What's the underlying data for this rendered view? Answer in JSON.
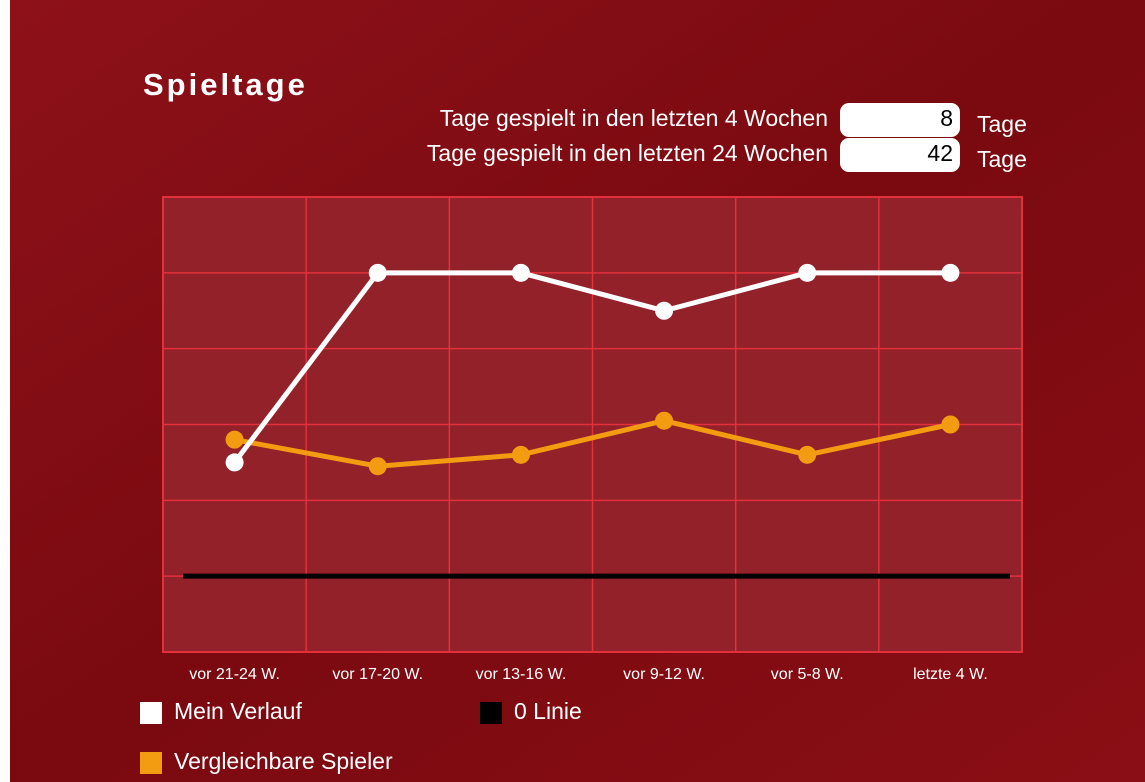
{
  "chart_data": {
    "type": "line",
    "title": "Spieltage",
    "categories": [
      "vor 21-24 W.",
      "vor 17-20 W.",
      "vor 13-16 W.",
      "vor 9-12 W.",
      "vor 5-8 W.",
      "letzte 4 W."
    ],
    "series": [
      {
        "name": "Mein Verlauf",
        "color": "#ffffff",
        "values": [
          3,
          8,
          8,
          7,
          8,
          8
        ]
      },
      {
        "name": "Vergleichbare Spieler",
        "color": "#f39c12",
        "values": [
          3.6,
          2.9,
          3.2,
          4.1,
          3.2,
          4.0
        ]
      }
    ],
    "zero_line": {
      "name": "0 Linie",
      "color": "#000000",
      "value": 0
    },
    "ylim": [
      -2,
      10
    ],
    "yticks": [
      -2,
      0,
      2,
      4,
      6,
      8,
      10
    ],
    "grid": true
  },
  "stats": [
    {
      "label": "Tage gespielt in den letzten 4 Wochen",
      "value": 8,
      "unit": "Tage"
    },
    {
      "label": "Tage gespielt in den letzten 24 Wochen",
      "value": 42,
      "unit": "Tage"
    }
  ]
}
